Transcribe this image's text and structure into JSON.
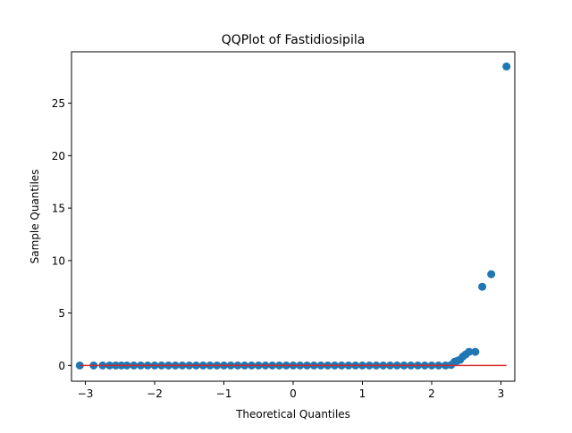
{
  "chart_data": {
    "type": "scatter",
    "title": "QQPlot of Fastidiosipila",
    "xlabel": "Theoretical Quantiles",
    "ylabel": "Sample Quantiles",
    "xlim": [
      -3.2,
      3.2
    ],
    "ylim": [
      -1.5,
      29.9
    ],
    "xticks": [
      -3,
      -2,
      -1,
      0,
      1,
      2,
      3
    ],
    "yticks": [
      0,
      5,
      10,
      15,
      20,
      25
    ],
    "grid": false,
    "legend": "none",
    "colors": {
      "points": "#1f77b4",
      "reference_line": "#d62728"
    },
    "reference_line": {
      "x": [
        -3.08,
        3.08
      ],
      "y": [
        0,
        0
      ]
    },
    "series": [
      {
        "points": [
          [
            -3.08,
            0.0
          ],
          [
            -2.88,
            0.0
          ],
          [
            -2.75,
            0.0
          ],
          [
            -2.65,
            0.0
          ],
          [
            -2.56,
            0.0
          ],
          [
            -2.48,
            0.0
          ],
          [
            -2.4,
            0.0
          ],
          [
            -2.3,
            0.0
          ],
          [
            -2.2,
            0.0
          ],
          [
            -2.1,
            0.0
          ],
          [
            -2.0,
            0.0
          ],
          [
            -1.9,
            0.0
          ],
          [
            -1.8,
            0.0
          ],
          [
            -1.7,
            0.0
          ],
          [
            -1.6,
            0.0
          ],
          [
            -1.5,
            0.0
          ],
          [
            -1.4,
            0.0
          ],
          [
            -1.3,
            0.0
          ],
          [
            -1.2,
            0.0
          ],
          [
            -1.1,
            0.0
          ],
          [
            -1.0,
            0.0
          ],
          [
            -0.9,
            0.0
          ],
          [
            -0.8,
            0.0
          ],
          [
            -0.7,
            0.0
          ],
          [
            -0.6,
            0.0
          ],
          [
            -0.5,
            0.0
          ],
          [
            -0.4,
            0.0
          ],
          [
            -0.3,
            0.0
          ],
          [
            -0.2,
            0.0
          ],
          [
            -0.1,
            0.0
          ],
          [
            0.0,
            0.0
          ],
          [
            0.1,
            0.0
          ],
          [
            0.2,
            0.0
          ],
          [
            0.3,
            0.0
          ],
          [
            0.4,
            0.0
          ],
          [
            0.5,
            0.0
          ],
          [
            0.6,
            0.0
          ],
          [
            0.7,
            0.0
          ],
          [
            0.8,
            0.0
          ],
          [
            0.9,
            0.0
          ],
          [
            1.0,
            0.0
          ],
          [
            1.1,
            0.0
          ],
          [
            1.2,
            0.0
          ],
          [
            1.3,
            0.0
          ],
          [
            1.4,
            0.0
          ],
          [
            1.5,
            0.0
          ],
          [
            1.6,
            0.0
          ],
          [
            1.7,
            0.0
          ],
          [
            1.8,
            0.0
          ],
          [
            1.9,
            0.0
          ],
          [
            2.0,
            0.0
          ],
          [
            2.1,
            0.0
          ],
          [
            2.2,
            0.0
          ],
          [
            2.28,
            0.05
          ],
          [
            2.33,
            0.35
          ],
          [
            2.37,
            0.45
          ],
          [
            2.41,
            0.55
          ],
          [
            2.45,
            0.85
          ],
          [
            2.49,
            1.05
          ],
          [
            2.54,
            1.3
          ],
          [
            2.63,
            1.3
          ],
          [
            2.73,
            7.5
          ],
          [
            2.86,
            8.7
          ],
          [
            3.08,
            28.5
          ]
        ]
      }
    ]
  }
}
